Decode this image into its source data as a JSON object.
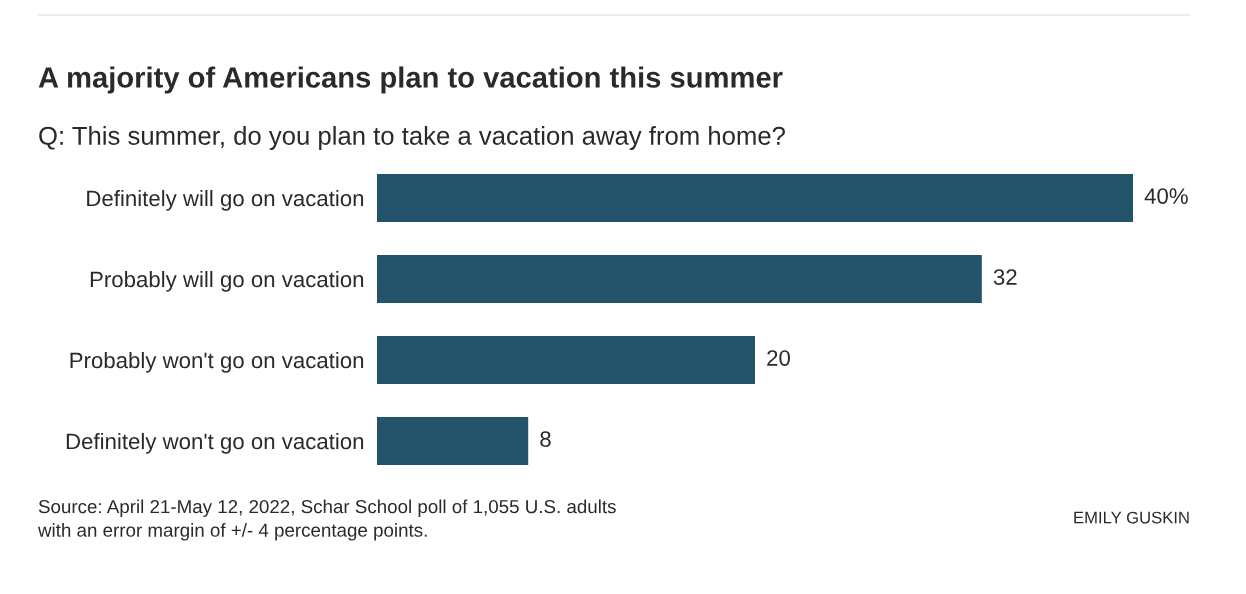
{
  "chart_data": {
    "type": "bar",
    "orientation": "horizontal",
    "title": "A majority of Americans plan to vacation this summer",
    "subtitle": "Q: This summer, do you plan to take a vacation away from home?",
    "categories": [
      "Definitely will go on vacation",
      "Probably will go on vacation",
      "Probably won't go on vacation",
      "Definitely won't go on vacation"
    ],
    "values": [
      40,
      32,
      20,
      8
    ],
    "color": "#22536a",
    "value_labels": [
      "40%",
      "32",
      "20",
      "8"
    ],
    "tick_labels": "y",
    "annotations": [
      "Source: April 21-May 12, 2022, Schar School poll of 1,055 U.S. adults\nwith an error margin of +/- 4 percentage points.",
      "EMILY GUSKIN"
    ]
  }
}
